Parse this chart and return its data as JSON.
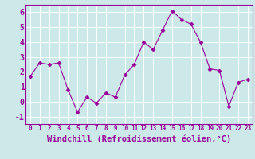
{
  "x": [
    0,
    1,
    2,
    3,
    4,
    5,
    6,
    7,
    8,
    9,
    10,
    11,
    12,
    13,
    14,
    15,
    16,
    17,
    18,
    19,
    20,
    21,
    22,
    23
  ],
  "y": [
    1.7,
    2.6,
    2.5,
    2.6,
    0.8,
    -0.7,
    0.3,
    -0.1,
    0.6,
    0.3,
    1.8,
    2.5,
    4.0,
    3.5,
    4.8,
    6.1,
    5.5,
    5.2,
    4.0,
    2.2,
    2.1,
    -0.3,
    1.3,
    1.5
  ],
  "line_color": "#990099",
  "marker": "D",
  "marker_size": 2.5,
  "background_color": "#cce8e8",
  "grid_color": "#ffffff",
  "xlabel": "Windchill (Refroidissement éolien,°C)",
  "ylim": [
    -1.5,
    6.5
  ],
  "xlim": [
    -0.5,
    23.5
  ],
  "yticks": [
    -1,
    0,
    1,
    2,
    3,
    4,
    5,
    6
  ],
  "xticks": [
    0,
    1,
    2,
    3,
    4,
    5,
    6,
    7,
    8,
    9,
    10,
    11,
    12,
    13,
    14,
    15,
    16,
    17,
    18,
    19,
    20,
    21,
    22,
    23
  ],
  "xlabel_fontsize": 7.5,
  "tick_fontsize": 7,
  "label_color": "#990099",
  "spine_color": "#990099"
}
